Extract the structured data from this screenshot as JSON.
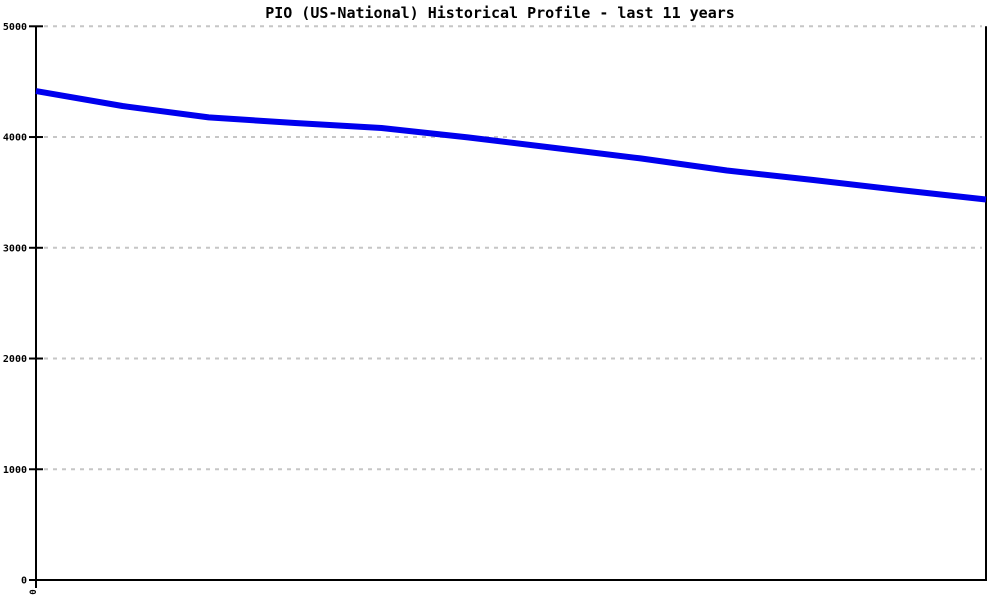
{
  "page": {
    "background": "#ffffff"
  },
  "chart_data": {
    "type": "line",
    "title": "PIO (US-National) Historical Profile - last 11 years",
    "xlabel": "",
    "ylabel": "",
    "x": [
      0,
      1,
      2,
      3,
      4,
      5,
      6,
      7,
      8,
      9,
      10,
      11
    ],
    "series": [
      {
        "name": "PIO",
        "values": [
          4415,
          4280,
          4177,
          4127,
          4082,
          3997,
          3902,
          3807,
          3698,
          3612,
          3522,
          3436
        ]
      }
    ],
    "ylim": [
      0,
      5000
    ],
    "y_ticks": [
      0,
      1000,
      2000,
      3000,
      4000,
      5000
    ],
    "y_tick_labels": [
      "0",
      "1000",
      "2000",
      "3000",
      "4000",
      "5000"
    ],
    "x_tick_labels_visible": [
      "0"
    ],
    "legend": "none",
    "grid": "horizontal dashed",
    "colors": {
      "line": "#0000ee",
      "axis": "#000000",
      "grid": "#c6c6c6",
      "labels": "#000000"
    }
  }
}
